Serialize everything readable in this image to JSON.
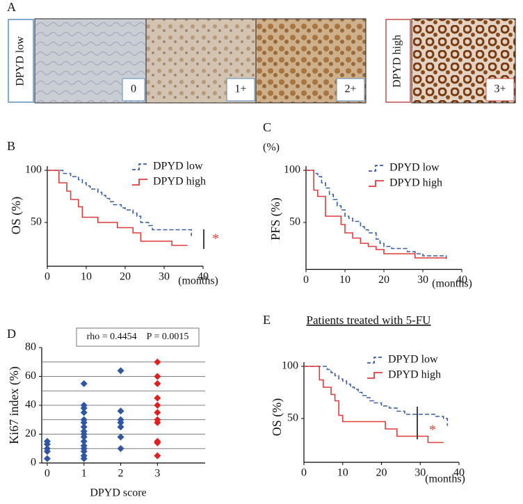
{
  "panel_a": {
    "panel": "A",
    "groups": [
      {
        "label": "DPYD low",
        "scores": [
          "0",
          "1+",
          "2+"
        ]
      },
      {
        "label": "DPYD high",
        "scores": [
          "3+"
        ]
      }
    ]
  },
  "chart_data": [
    {
      "type": "survival",
      "panel": "B",
      "y_label": "OS (%)",
      "x_label": "(months)",
      "annotation": "*",
      "xlim": [
        0,
        40
      ],
      "xticks": [
        0,
        10,
        20,
        30,
        40
      ],
      "ylim": [
        8,
        104
      ],
      "yticks": [
        50,
        100
      ],
      "series": [
        {
          "name": "DPYD low",
          "color": "#3a5ba8",
          "dashed": true,
          "x": [
            0,
            4,
            6,
            8,
            9,
            10,
            11,
            13,
            14,
            15,
            16,
            17,
            19,
            20,
            22,
            23,
            24,
            26,
            27,
            36,
            37
          ],
          "values": [
            100,
            97,
            94,
            91,
            88,
            85,
            82,
            79,
            76,
            73,
            70,
            67,
            64,
            62,
            59,
            56,
            50,
            47,
            43,
            43,
            37
          ]
        },
        {
          "name": "DPYD high",
          "color": "#e03a3a",
          "dashed": false,
          "x": [
            0,
            3,
            5,
            6,
            8,
            9,
            13,
            18,
            22,
            24,
            32,
            36
          ],
          "values": [
            100,
            88,
            80,
            72,
            65,
            55,
            50,
            45,
            40,
            32,
            28,
            28
          ]
        }
      ]
    },
    {
      "type": "survival",
      "panel": "C",
      "y_unit": "(%)",
      "y_label": "PFS (%)",
      "x_label": "(months)",
      "xlim": [
        0,
        40
      ],
      "xticks": [
        0,
        10,
        20,
        30,
        40
      ],
      "ylim": [
        5,
        104
      ],
      "yticks": [
        50,
        100
      ],
      "series": [
        {
          "name": "DPYD low",
          "color": "#3a5ba8",
          "dashed": true,
          "x": [
            0,
            2,
            3,
            4,
            5,
            6,
            7,
            8,
            9,
            10,
            11,
            12,
            14,
            15,
            16,
            18,
            19,
            20,
            22,
            26,
            28,
            30,
            36
          ],
          "values": [
            100,
            97,
            94,
            88,
            83,
            77,
            72,
            66,
            62,
            56,
            54,
            51,
            46,
            43,
            40,
            34,
            30,
            27,
            25,
            22,
            20,
            18,
            15
          ]
        },
        {
          "name": "DPYD high",
          "color": "#e03a3a",
          "dashed": false,
          "x": [
            0,
            2,
            3,
            5,
            9,
            10,
            12,
            14,
            16,
            18,
            20,
            28,
            36
          ],
          "values": [
            100,
            81,
            75,
            56,
            48,
            40,
            35,
            30,
            27,
            24,
            20,
            16,
            16
          ]
        }
      ]
    },
    {
      "type": "scatter",
      "panel": "D",
      "y_label": "Ki67 index (%)",
      "x_label": "DPYD score",
      "annotation": "rho = 0.4454    P = 0.0015",
      "xlim": [
        -0.15,
        4.3
      ],
      "xticks": [
        0,
        1,
        2,
        3
      ],
      "ylim": [
        0,
        80
      ],
      "yticks": [
        0,
        20,
        40,
        60,
        80
      ],
      "grid_lines": [
        10,
        20,
        30,
        40,
        50,
        60,
        70
      ],
      "series": [
        {
          "color": "#2f55a4",
          "x": [
            0,
            0,
            0,
            0,
            0,
            1,
            1,
            1,
            1,
            1,
            1,
            1,
            1,
            1,
            1,
            1,
            1,
            1,
            1,
            1,
            1,
            2,
            2,
            2,
            2,
            2,
            2,
            2
          ],
          "values": [
            3,
            8,
            10,
            13,
            15,
            3,
            5,
            8,
            10,
            12,
            15,
            18,
            20,
            22,
            25,
            28,
            30,
            35,
            38,
            40,
            55,
            10,
            18,
            25,
            28,
            30,
            36,
            64
          ]
        },
        {
          "color": "#e02020",
          "x": [
            3,
            3,
            3,
            3,
            3,
            3,
            3,
            3,
            3,
            3,
            3
          ],
          "values": [
            5,
            14,
            15,
            28,
            30,
            35,
            40,
            45,
            55,
            60,
            70
          ]
        }
      ]
    },
    {
      "type": "survival",
      "panel": "E",
      "title": "Patients treated with 5-FU",
      "y_label": "OS (%)",
      "x_label": "(months)",
      "annotation": "*",
      "xlim": [
        0,
        40
      ],
      "xticks": [
        0,
        10,
        20,
        30,
        40
      ],
      "ylim": [
        8,
        104
      ],
      "yticks": [
        50,
        100
      ],
      "series": [
        {
          "name": "DPYD low",
          "color": "#3a5ba8",
          "dashed": true,
          "x": [
            0,
            6,
            7,
            8,
            9,
            10,
            11,
            12,
            13,
            14,
            15,
            16,
            17,
            18,
            20,
            22,
            24,
            26,
            28,
            34,
            36,
            37
          ],
          "values": [
            100,
            97,
            94,
            91,
            88,
            86,
            83,
            80,
            78,
            75,
            72,
            70,
            67,
            65,
            62,
            60,
            57,
            54,
            54,
            52,
            50,
            43
          ]
        },
        {
          "name": "DPYD high",
          "color": "#e03a3a",
          "dashed": false,
          "x": [
            0,
            4,
            5,
            7,
            8,
            9,
            10,
            21,
            24,
            32,
            36
          ],
          "values": [
            100,
            87,
            80,
            73,
            67,
            53,
            47,
            40,
            33,
            27,
            27
          ]
        }
      ]
    }
  ]
}
